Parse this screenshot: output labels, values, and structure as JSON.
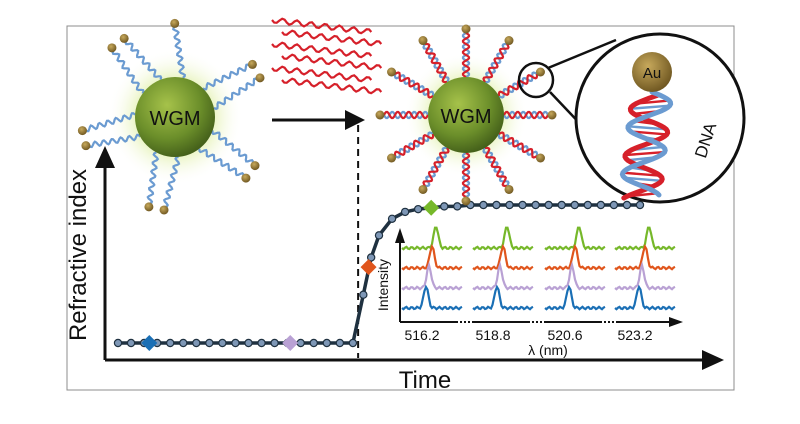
{
  "sensor_before": {
    "label": "WGM"
  },
  "sensor_after": {
    "label": "WGM"
  },
  "zoom": {
    "particle_label": "Au",
    "strand_label": "DNA"
  },
  "main_plot": {
    "ylabel": "Refractive index",
    "xlabel": "Time",
    "curve": [
      [
        0.0,
        0.0
      ],
      [
        0.05,
        0.0
      ],
      [
        0.1,
        0.0
      ],
      [
        0.15,
        0.0
      ],
      [
        0.2,
        0.0
      ],
      [
        0.25,
        0.0
      ],
      [
        0.3,
        0.0
      ],
      [
        0.35,
        0.0
      ],
      [
        0.4,
        0.0
      ],
      [
        0.45,
        0.0
      ],
      [
        0.5,
        0.0
      ],
      [
        0.55,
        0.0
      ],
      [
        0.6,
        0.0
      ],
      [
        0.65,
        0.0
      ],
      [
        0.7,
        0.0
      ],
      [
        0.75,
        0.0
      ],
      [
        0.8,
        0.0
      ],
      [
        0.85,
        0.0
      ],
      [
        0.9,
        0.0
      ],
      [
        0.94,
        0.35
      ],
      [
        0.97,
        0.62
      ],
      [
        1.0,
        0.78
      ],
      [
        1.05,
        0.9
      ],
      [
        1.1,
        0.95
      ],
      [
        1.15,
        0.97
      ],
      [
        1.2,
        0.98
      ],
      [
        1.25,
        0.99
      ],
      [
        1.3,
        0.99
      ],
      [
        1.35,
        1.0
      ],
      [
        1.4,
        1.0
      ],
      [
        1.45,
        1.0
      ],
      [
        1.5,
        1.0
      ],
      [
        1.55,
        1.0
      ],
      [
        1.6,
        1.0
      ],
      [
        1.65,
        1.0
      ],
      [
        1.7,
        1.0
      ],
      [
        1.75,
        1.0
      ],
      [
        1.8,
        1.0
      ],
      [
        1.85,
        1.0
      ],
      [
        1.9,
        1.0
      ],
      [
        1.95,
        1.0
      ],
      [
        2.0,
        1.0
      ]
    ],
    "markers": [
      {
        "x": 0.12,
        "y": 0.0,
        "color": "#1a6fb5"
      },
      {
        "x": 0.66,
        "y": 0.0,
        "color": "#b9a1d4"
      },
      {
        "x": 0.96,
        "y": 0.55,
        "color": "#e0551c"
      },
      {
        "x": 1.2,
        "y": 0.98,
        "color": "#76b82a"
      }
    ],
    "event_x": 0.92
  },
  "inset": {
    "ylabel": "Intensity",
    "xlabel": "λ (nm)",
    "ticks": [
      "516.2",
      "518.8",
      "520.6",
      "523.2"
    ],
    "trace_colors": [
      "#76b82a",
      "#e0551c",
      "#b9a1d4",
      "#1a6fb5"
    ]
  },
  "colors": {
    "sphere_fill": "#6b8e2a",
    "glow": "#c7e06a",
    "dna_blue": "#6b9bd1",
    "dna_red": "#d6202a",
    "gold": "#8a6f2f",
    "curve": "#1f3140",
    "point": "#7e97b6"
  }
}
